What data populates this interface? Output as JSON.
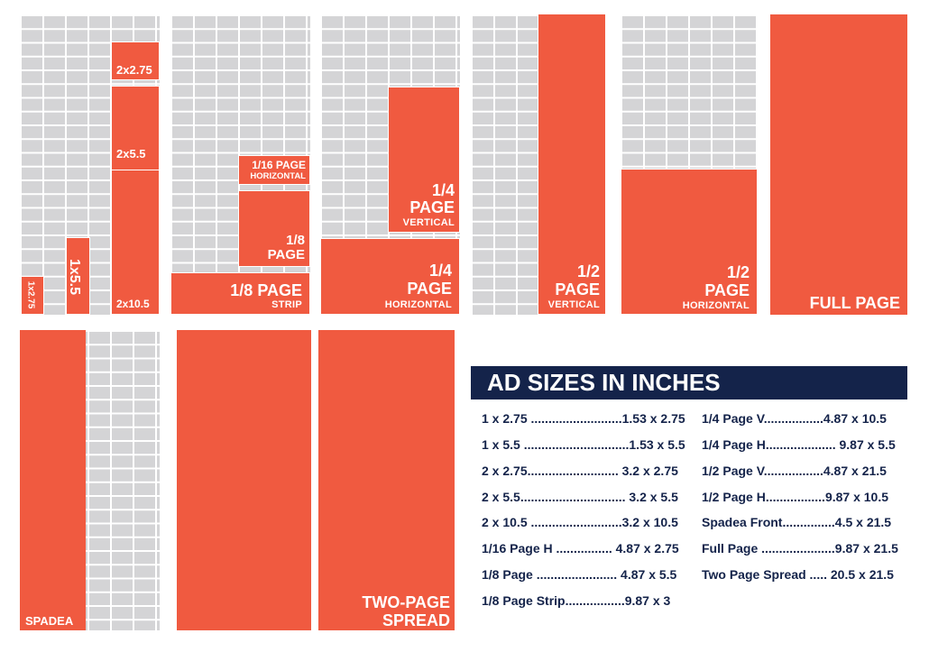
{
  "colors": {
    "ad": "#f05a40",
    "grid": "#d4d4d6",
    "title_bg": "#14234a",
    "title_text": "#ffffff",
    "row_text": "#14234a"
  },
  "panel1": {
    "l1": "2x2.75",
    "l2": "2x5.5",
    "l3": "2x10.5",
    "l4": "1x5.5",
    "l5": "1x2.75"
  },
  "panel2": {
    "h16_line1": "1/16 PAGE",
    "h16_line2": "HORIZONTAL",
    "e_line1": "1/8",
    "e_line2": "PAGE",
    "strip_line1": "1/8 PAGE",
    "strip_line2": "STRIP"
  },
  "panel3": {
    "v_line1": "1/4",
    "v_line2": "PAGE",
    "v_line3": "VERTICAL",
    "h_line1": "1/4",
    "h_line2": "PAGE",
    "h_line3": "HORIZONTAL"
  },
  "panel4": {
    "line1": "1/2",
    "line2": "PAGE",
    "line3": "VERTICAL"
  },
  "panel5": {
    "line1": "1/2",
    "line2": "PAGE",
    "line3": "HORIZONTAL"
  },
  "panel6": {
    "label": "FULL PAGE"
  },
  "panel7": {
    "label": "SPADEA"
  },
  "panel8": {
    "line1": "TWO-PAGE",
    "line2": "SPREAD"
  },
  "table": {
    "title": "AD SIZES IN INCHES",
    "left": [
      "1 x 2.75 ..........................1.53 x 2.75",
      "1 x 5.5 ..............................1.53 x 5.5",
      "2 x 2.75.......................... 3.2 x 2.75",
      "2 x 5.5.............................. 3.2 x 5.5",
      "2 x 10.5 ..........................3.2 x 10.5",
      "1/16 Page H ................ 4.87 x 2.75",
      "1/8 Page ....................... 4.87 x 5.5",
      "1/8 Page Strip.................9.87 x 3"
    ],
    "right": [
      "1/4 Page V.................4.87 x 10.5",
      "1/4 Page H.................... 9.87 x 5.5",
      "1/2 Page V.................4.87 x 21.5",
      "1/2 Page H.................9.87 x 10.5",
      "Spadea Front...............4.5 x 21.5",
      "Full Page .....................9.87 x 21.5",
      "Two Page Spread ..... 20.5 x 21.5"
    ]
  }
}
